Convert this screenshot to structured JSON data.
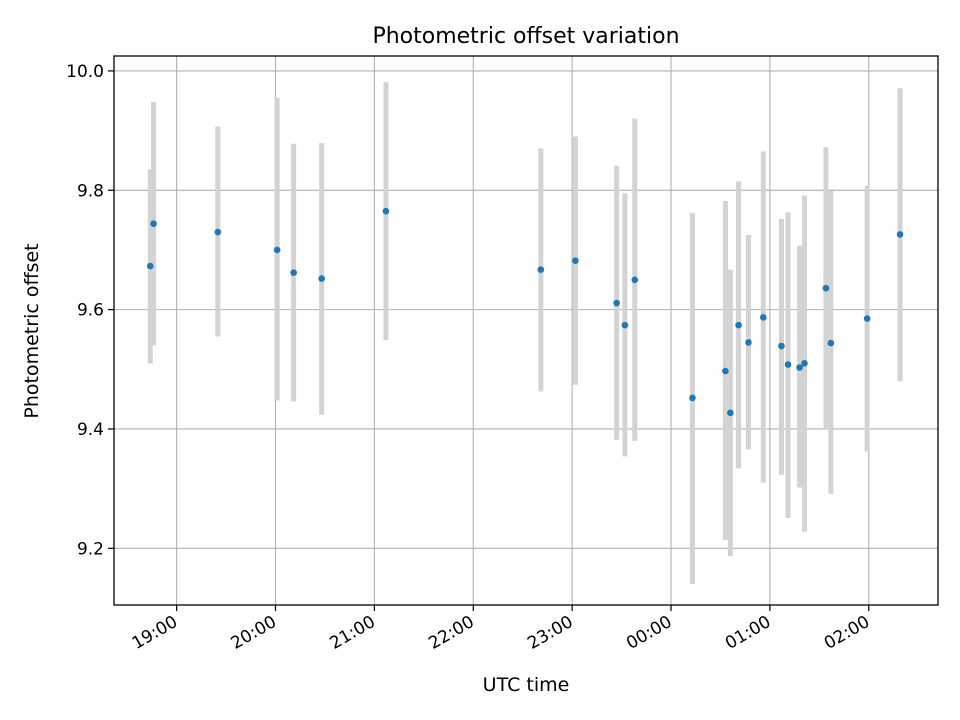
{
  "chart_data": {
    "type": "scatter",
    "title": "Photometric offset variation",
    "xlabel": "UTC time",
    "ylabel": "Photometric offset",
    "x_ticks": [
      "19:00",
      "20:00",
      "21:00",
      "22:00",
      "23:00",
      "00:00",
      "01:00",
      "02:00"
    ],
    "y_ticks": [
      "9.2",
      "9.4",
      "9.6",
      "9.8",
      "10.0"
    ],
    "xlim": [
      "18:22",
      "02:42"
    ],
    "ylim": [
      9.105,
      10.025
    ],
    "grid": true,
    "legend": "none",
    "colors": {
      "points": "#1f77b4",
      "errorbars": "#d3d3d3",
      "grid": "#b0b0b0"
    },
    "points": [
      {
        "x": "18:44",
        "y": 9.673,
        "ylo": 9.51,
        "yhi": 9.835
      },
      {
        "x": "18:46",
        "y": 9.744,
        "ylo": 9.54,
        "yhi": 9.948
      },
      {
        "x": "19:25",
        "y": 9.73,
        "ylo": 9.555,
        "yhi": 9.907
      },
      {
        "x": "20:01",
        "y": 9.7,
        "ylo": 9.448,
        "yhi": 9.955
      },
      {
        "x": "20:11",
        "y": 9.662,
        "ylo": 9.446,
        "yhi": 9.878
      },
      {
        "x": "20:28",
        "y": 9.652,
        "ylo": 9.424,
        "yhi": 9.879
      },
      {
        "x": "21:07",
        "y": 9.765,
        "ylo": 9.549,
        "yhi": 9.981
      },
      {
        "x": "22:41",
        "y": 9.667,
        "ylo": 9.463,
        "yhi": 9.87
      },
      {
        "x": "23:02",
        "y": 9.682,
        "ylo": 9.474,
        "yhi": 9.89
      },
      {
        "x": "23:27",
        "y": 9.611,
        "ylo": 9.382,
        "yhi": 9.841
      },
      {
        "x": "23:32",
        "y": 9.574,
        "ylo": 9.354,
        "yhi": 9.795
      },
      {
        "x": "23:38",
        "y": 9.65,
        "ylo": 9.38,
        "yhi": 9.92
      },
      {
        "x": "00:13",
        "y": 9.452,
        "ylo": 9.14,
        "yhi": 9.762
      },
      {
        "x": "00:33",
        "y": 9.497,
        "ylo": 9.214,
        "yhi": 9.782
      },
      {
        "x": "00:36",
        "y": 9.427,
        "ylo": 9.187,
        "yhi": 9.667
      },
      {
        "x": "00:41",
        "y": 9.574,
        "ylo": 9.334,
        "yhi": 9.815
      },
      {
        "x": "00:47",
        "y": 9.545,
        "ylo": 9.366,
        "yhi": 9.725
      },
      {
        "x": "00:56",
        "y": 9.587,
        "ylo": 9.31,
        "yhi": 9.865
      },
      {
        "x": "01:07",
        "y": 9.539,
        "ylo": 9.323,
        "yhi": 9.752
      },
      {
        "x": "01:11",
        "y": 9.508,
        "ylo": 9.251,
        "yhi": 9.763
      },
      {
        "x": "01:18",
        "y": 9.503,
        "ylo": 9.302,
        "yhi": 9.707
      },
      {
        "x": "01:21",
        "y": 9.51,
        "ylo": 9.228,
        "yhi": 9.791
      },
      {
        "x": "01:34",
        "y": 9.636,
        "ylo": 9.4,
        "yhi": 9.872
      },
      {
        "x": "01:37",
        "y": 9.544,
        "ylo": 9.291,
        "yhi": 9.799
      },
      {
        "x": "01:59",
        "y": 9.585,
        "ylo": 9.362,
        "yhi": 9.808
      },
      {
        "x": "02:19",
        "y": 9.726,
        "ylo": 9.48,
        "yhi": 9.971
      }
    ]
  }
}
